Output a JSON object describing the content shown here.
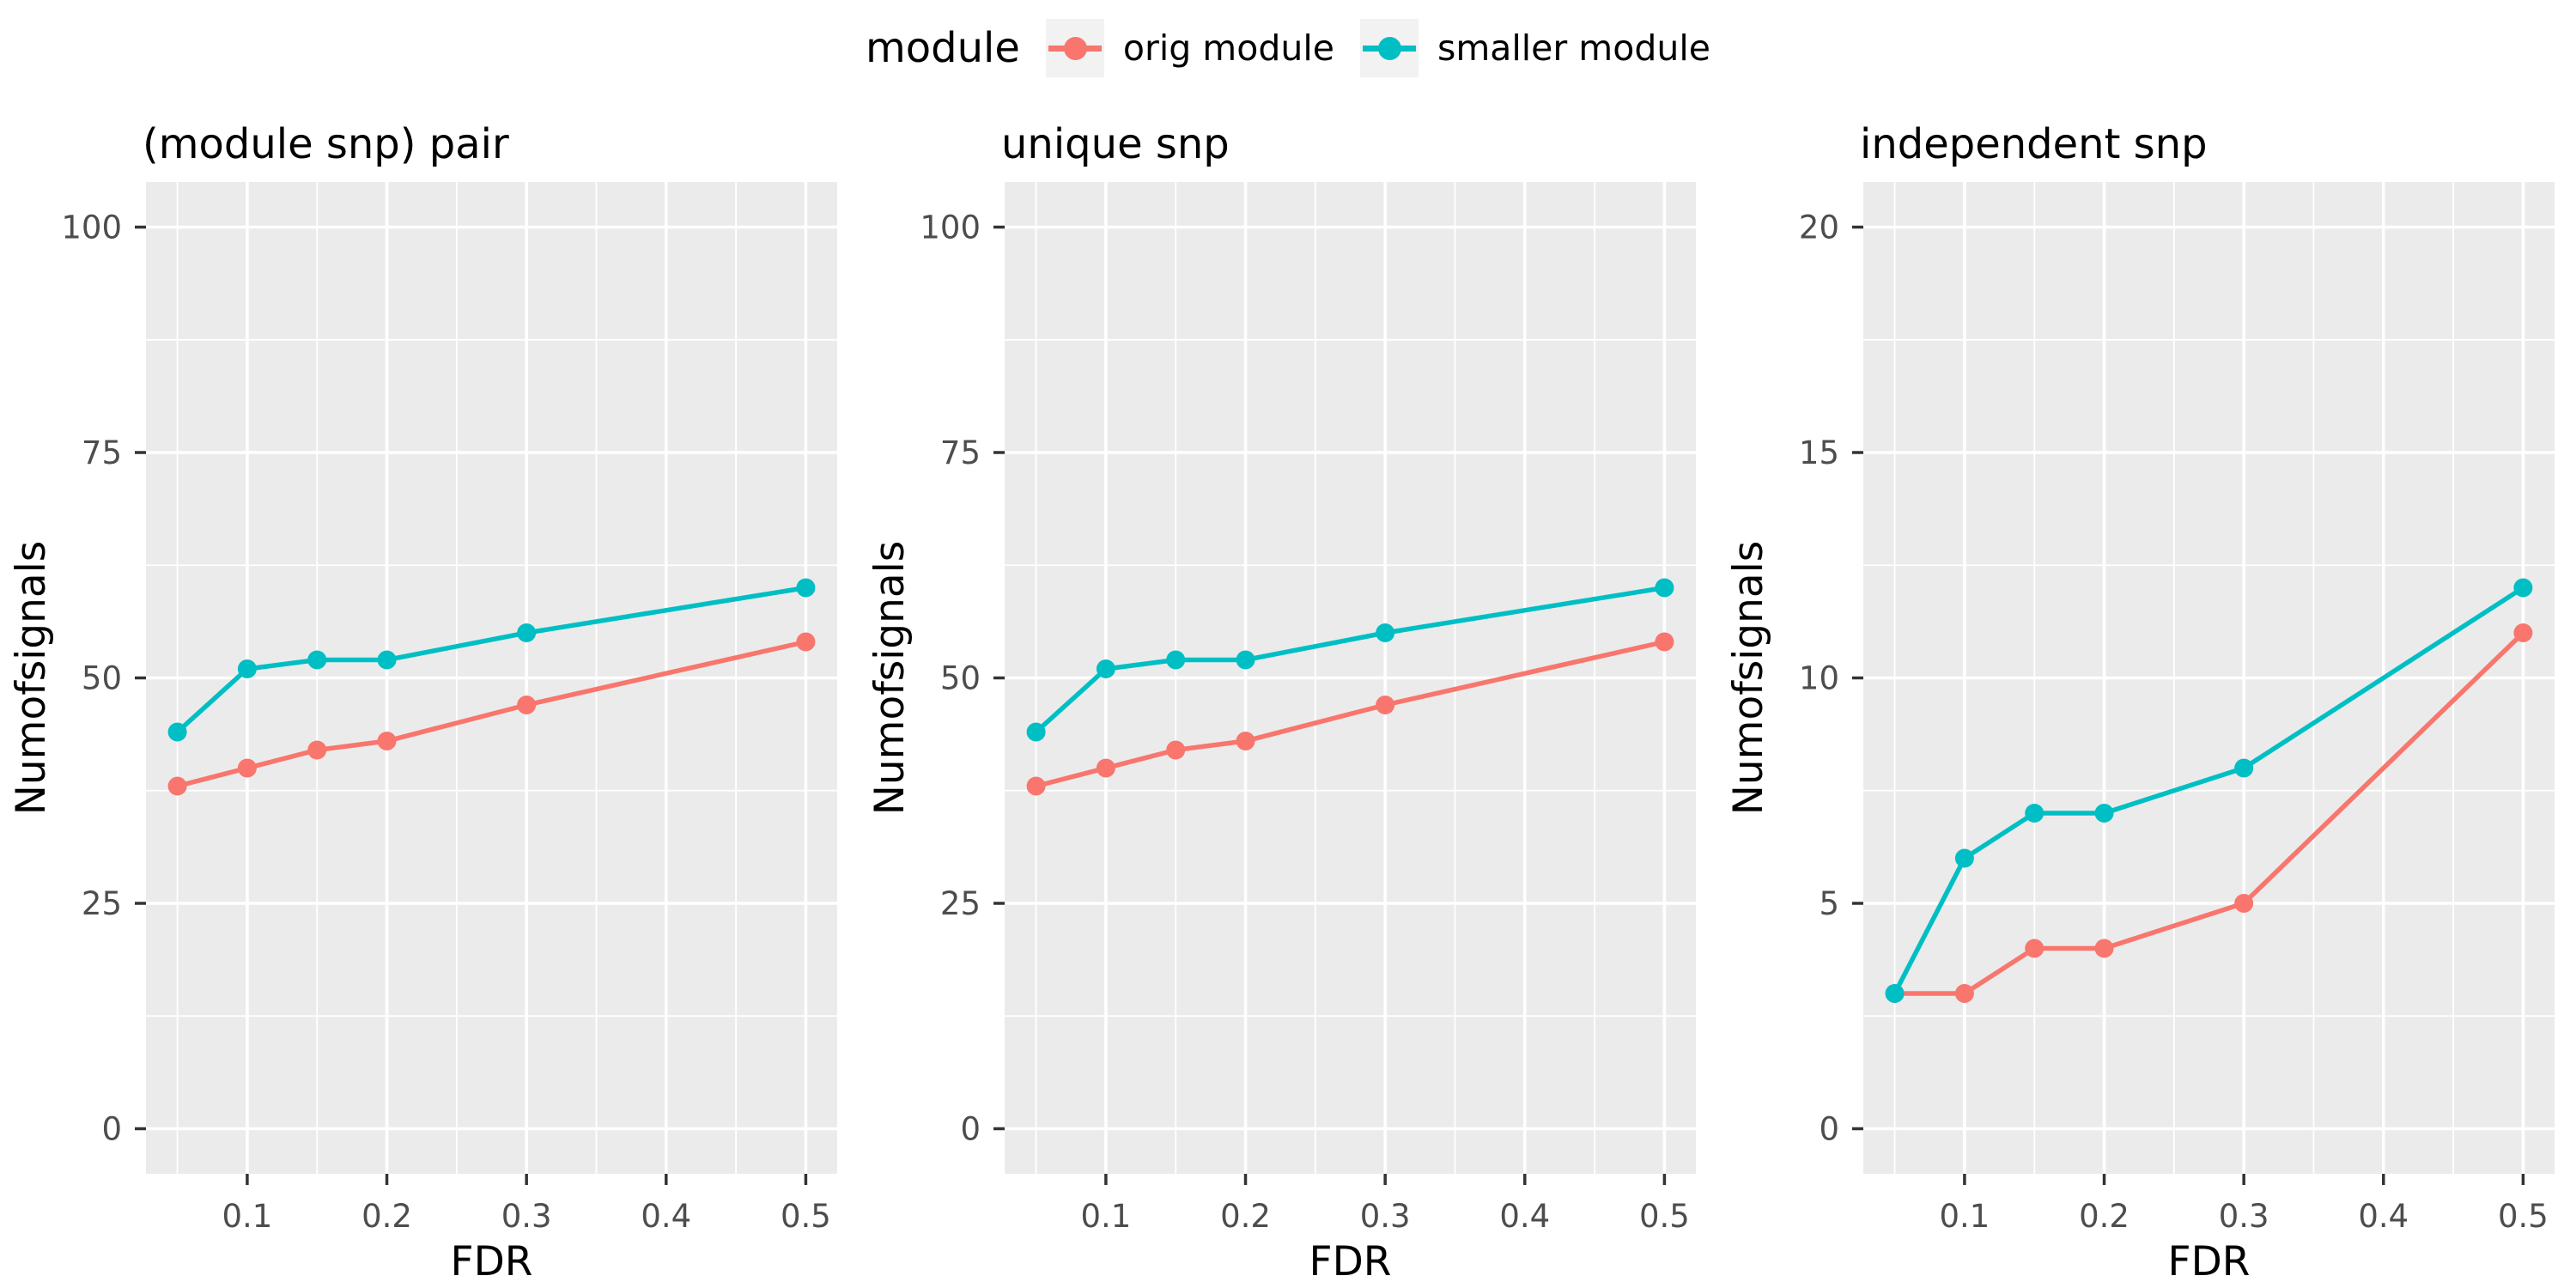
{
  "legend": {
    "title": "module",
    "items": [
      {
        "label": "orig module",
        "color": "#F8766D"
      },
      {
        "label": "smaller module",
        "color": "#00BFC4"
      }
    ]
  },
  "style": {
    "panel_bg": "#EBEBEB",
    "grid_color": "#FFFFFF",
    "tick_mark_color": "#333333",
    "tick_label_color": "#4D4D4D",
    "title_color": "#000000",
    "legend_key_bg": "#F2F2F2"
  },
  "chart_data": [
    {
      "type": "line",
      "title": "(module snp) pair",
      "xlabel": "FDR",
      "ylabel": "Numofsignals",
      "x": [
        0.05,
        0.1,
        0.15,
        0.2,
        0.3,
        0.5
      ],
      "x_ticks": [
        0.1,
        0.2,
        0.3,
        0.4,
        0.5
      ],
      "xlim": [
        0.05,
        0.5
      ],
      "y_ticks": [
        0,
        25,
        50,
        75,
        100
      ],
      "ylim": [
        0,
        100
      ],
      "grid": true,
      "legend_position": "top",
      "series": [
        {
          "name": "orig module",
          "color": "#F8766D",
          "values": [
            38,
            40,
            42,
            43,
            47,
            54
          ]
        },
        {
          "name": "smaller module",
          "color": "#00BFC4",
          "values": [
            44,
            51,
            52,
            52,
            55,
            60
          ]
        }
      ]
    },
    {
      "type": "line",
      "title": "unique snp",
      "xlabel": "FDR",
      "ylabel": "Numofsignals",
      "x": [
        0.05,
        0.1,
        0.15,
        0.2,
        0.3,
        0.5
      ],
      "x_ticks": [
        0.1,
        0.2,
        0.3,
        0.4,
        0.5
      ],
      "xlim": [
        0.05,
        0.5
      ],
      "y_ticks": [
        0,
        25,
        50,
        75,
        100
      ],
      "ylim": [
        0,
        100
      ],
      "grid": true,
      "legend_position": "top",
      "series": [
        {
          "name": "orig module",
          "color": "#F8766D",
          "values": [
            38,
            40,
            42,
            43,
            47,
            54
          ]
        },
        {
          "name": "smaller module",
          "color": "#00BFC4",
          "values": [
            44,
            51,
            52,
            52,
            55,
            60
          ]
        }
      ]
    },
    {
      "type": "line",
      "title": "independent snp",
      "xlabel": "FDR",
      "ylabel": "Numofsignals",
      "x": [
        0.05,
        0.1,
        0.15,
        0.2,
        0.3,
        0.5
      ],
      "x_ticks": [
        0.1,
        0.2,
        0.3,
        0.4,
        0.5
      ],
      "xlim": [
        0.05,
        0.5
      ],
      "y_ticks": [
        0,
        5,
        10,
        15,
        20
      ],
      "ylim": [
        0,
        20
      ],
      "grid": true,
      "legend_position": "top",
      "series": [
        {
          "name": "orig module",
          "color": "#F8766D",
          "values": [
            3,
            3,
            4,
            4,
            5,
            11
          ]
        },
        {
          "name": "smaller module",
          "color": "#00BFC4",
          "values": [
            3,
            6,
            7,
            7,
            8,
            12
          ]
        }
      ]
    }
  ]
}
